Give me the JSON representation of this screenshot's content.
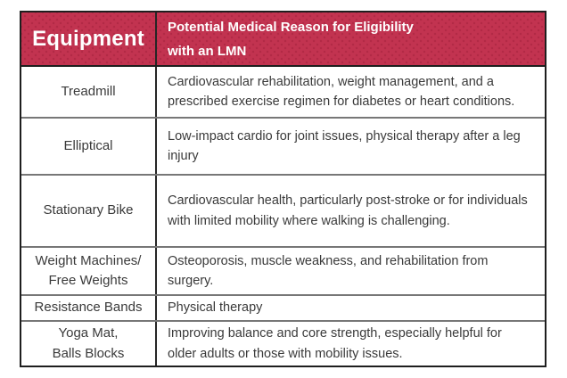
{
  "colors": {
    "header_bg": "#c23350",
    "header_dot": "#b12a46",
    "header_text": "#ffffff",
    "body_text": "#3a3a3a",
    "border_outer": "#1e1e1e",
    "border_inner_horizontal": "#777777",
    "border_column_divider": "#262626",
    "page_bg": "#ffffff"
  },
  "table": {
    "header": {
      "equipment": "Equipment",
      "reason": "Potential Medical Reason for Eligibility\nwith an LMN"
    },
    "rows": [
      {
        "equipment": "Treadmill",
        "reason": "Cardiovascular rehabilitation, weight management, and a prescribed exercise regimen for diabetes or heart conditions."
      },
      {
        "equipment": "Elliptical",
        "reason": "Low-impact cardio for joint issues, physical therapy after a leg injury"
      },
      {
        "equipment": "Stationary Bike",
        "reason": "Cardiovascular health, particularly post-stroke or for individuals with limited mobility where walking is challenging."
      },
      {
        "equipment": "Weight Machines/\nFree Weights",
        "reason": "Osteoporosis, muscle weakness, and rehabilitation from surgery."
      },
      {
        "equipment": "Resistance Bands",
        "reason": "Physical therapy"
      },
      {
        "equipment": "Yoga Mat,\nBalls Blocks",
        "reason": "Improving balance and core strength, especially helpful for older adults or those with mobility issues."
      }
    ]
  }
}
